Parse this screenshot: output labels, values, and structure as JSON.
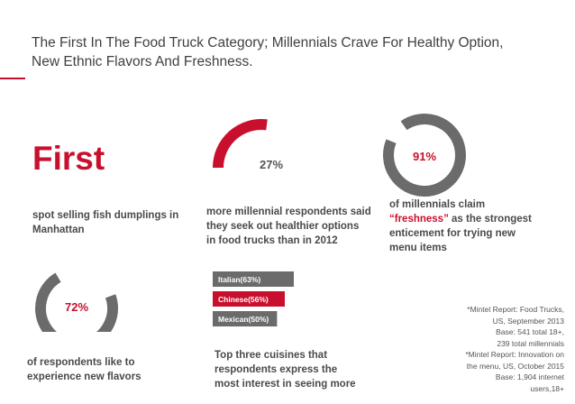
{
  "slide": {
    "title_line1": "The First In The Food Truck Category; Millennials Crave For Healthy Option,",
    "title_line2": "New Ethnic Flavors And Freshness.",
    "accent_color": "#c8102e",
    "gray_color": "#6b6b6b"
  },
  "first_stat": {
    "headline": "First",
    "desc_line1": "spot selling fish dumplings in",
    "desc_line2": "Manhattan"
  },
  "stat_27": {
    "desc_line1": "more millennial respondents said",
    "desc_line2": "they seek out healthier options",
    "desc_line3": "in food trucks than in 2012"
  },
  "stat_91": {
    "desc_line1": "of millennials claim",
    "desc_highlight": "“freshness”",
    "desc_line2_rest": " as the strongest",
    "desc_line3": "enticement for trying new",
    "desc_line4": "menu items"
  },
  "stat_72": {
    "desc_line1": "of respondents like to",
    "desc_line2": "experience new flavors"
  },
  "cuisines": {
    "desc_line1": "Top three cuisines that",
    "desc_line2": "respondents express the",
    "desc_line3": "most interest in seeing more"
  },
  "sources": [
    "*Mintel Report: Food Trucks,",
    "US, September 2013",
    "Base: 541 total 18+,",
    "239 total millennials",
    "*Mintel Report: Innovation on",
    "the menu, US, October 2015",
    "Base: 1,904 internet",
    "users,18+"
  ],
  "chart_data": [
    {
      "type": "pie",
      "title": "",
      "label": "27%",
      "value": 27,
      "max": 100,
      "color": "#c8102e"
    },
    {
      "type": "pie",
      "title": "",
      "label": "91%",
      "value": 91,
      "max": 100,
      "color": "#6b6b6b"
    },
    {
      "type": "pie",
      "title": "",
      "label": "72%",
      "value": 72,
      "max": 100,
      "color": "#6b6b6b"
    },
    {
      "type": "bar",
      "orientation": "horizontal",
      "title": "",
      "categories": [
        "Italian",
        "Chinese",
        "Mexican"
      ],
      "labels": [
        "Italian(63%)",
        "Chinese(56%)",
        "Mexican(50%)"
      ],
      "values": [
        63,
        56,
        50
      ],
      "colors": [
        "#6b6b6b",
        "#c8102e",
        "#6b6b6b"
      ],
      "xlim": [
        0,
        100
      ]
    }
  ]
}
